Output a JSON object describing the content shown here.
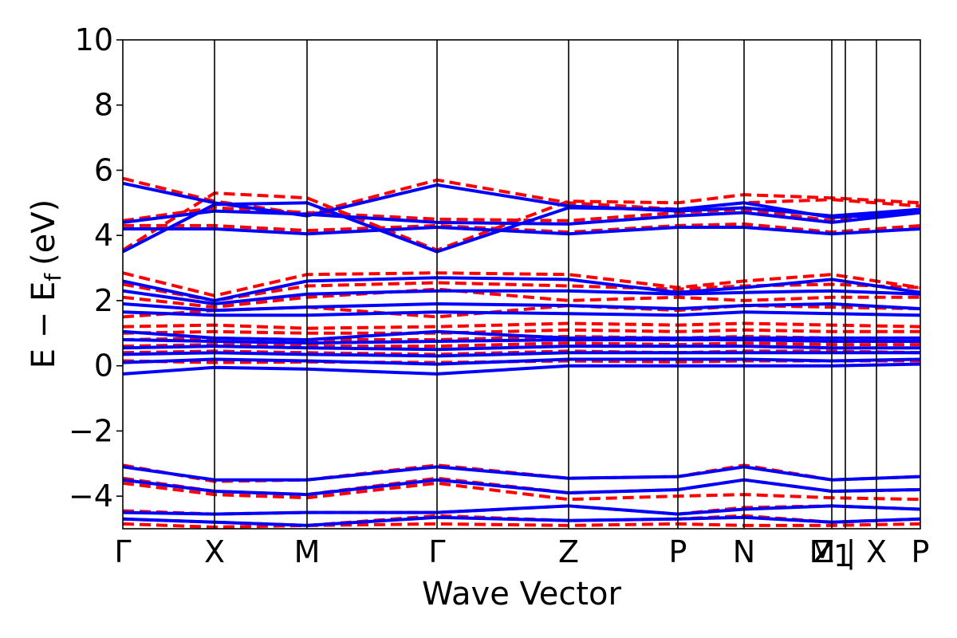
{
  "chart_data": {
    "type": "line",
    "xlabel": "Wave Vector",
    "ylabel": "E − E",
    "ylabel_subscript": "f",
    "ylabel_unit": "(eV)",
    "ylim": [
      -5,
      10
    ],
    "yticks": [
      -4,
      -2,
      0,
      2,
      4,
      6,
      8,
      10
    ],
    "ytick_labels": [
      "−4",
      "−2",
      "0",
      "2",
      "4",
      "6",
      "8",
      "10"
    ],
    "kpath": [
      {
        "label": "Γ",
        "pos": 0.0
      },
      {
        "label": "X",
        "pos": 0.115
      },
      {
        "label": "M",
        "pos": 0.231
      },
      {
        "label": "Γ",
        "pos": 0.394
      },
      {
        "label": "Z",
        "pos": 0.559
      },
      {
        "label": "P",
        "pos": 0.696
      },
      {
        "label": "N",
        "pos": 0.779
      },
      {
        "label": "Z",
        "pos": 0.889
      },
      {
        "label": "M",
        "pos": 0.889
      },
      {
        "label": "1",
        "pos": 0.889
      },
      {
        "label": "|",
        "pos": 0.907
      },
      {
        "label": "X",
        "pos": 0.945
      },
      {
        "label": "P",
        "pos": 1.0
      }
    ],
    "series": [
      {
        "style": "dashed",
        "color": "#ff0000",
        "bands": [
          {
            "x": [
              0,
              0.115,
              0.231,
              0.394,
              0.559,
              0.696,
              0.779,
              0.889,
              1.0
            ],
            "y": [
              -3.05,
              -3.55,
              -3.5,
              -3.05,
              -3.45,
              -3.4,
              -3.05,
              -3.5,
              -3.4
            ]
          },
          {
            "x": [
              0,
              0.115,
              0.231,
              0.394,
              0.559,
              0.696,
              0.779,
              0.889,
              1.0
            ],
            "y": [
              -3.45,
              -3.85,
              -3.95,
              -3.45,
              -3.9,
              -3.8,
              -3.5,
              -3.85,
              -3.8
            ]
          },
          {
            "x": [
              0,
              0.115,
              0.231,
              0.394,
              0.559,
              0.696,
              0.779,
              0.889,
              1.0
            ],
            "y": [
              -3.6,
              -3.95,
              -4.05,
              -3.6,
              -4.1,
              -4.0,
              -3.95,
              -4.05,
              -4.1
            ]
          },
          {
            "x": [
              0,
              0.115,
              0.231,
              0.394,
              0.559,
              0.696,
              0.779,
              0.889,
              1.0
            ],
            "y": [
              -4.45,
              -4.55,
              -4.5,
              -4.5,
              -4.3,
              -4.55,
              -4.35,
              -4.3,
              -4.4
            ]
          },
          {
            "x": [
              0,
              0.115,
              0.231,
              0.394,
              0.559,
              0.696,
              0.779,
              0.889,
              1.0
            ],
            "y": [
              -4.7,
              -4.8,
              -4.9,
              -4.6,
              -4.75,
              -4.7,
              -4.6,
              -4.8,
              -4.7
            ]
          },
          {
            "x": [
              0,
              0.115,
              0.231,
              0.394,
              0.559,
              0.696,
              0.779,
              0.889,
              1.0
            ],
            "y": [
              -4.85,
              -4.95,
              -4.9,
              -4.85,
              -4.9,
              -4.85,
              -4.9,
              -4.9,
              -4.85
            ]
          },
          {
            "x": [
              0,
              0.115,
              0.231,
              0.394,
              0.559,
              0.696,
              0.779,
              0.889,
              1.0
            ],
            "y": [
              0.15,
              0.1,
              0.12,
              0.1,
              0.15,
              0.12,
              0.15,
              0.15,
              0.15
            ]
          },
          {
            "x": [
              0,
              0.115,
              0.231,
              0.394,
              0.559,
              0.696,
              0.779,
              0.889,
              1.0
            ],
            "y": [
              0.4,
              0.45,
              0.4,
              0.35,
              0.45,
              0.4,
              0.45,
              0.45,
              0.4
            ]
          },
          {
            "x": [
              0,
              0.115,
              0.231,
              0.394,
              0.559,
              0.696,
              0.779,
              0.889,
              1.0
            ],
            "y": [
              0.6,
              0.65,
              0.6,
              0.6,
              0.7,
              0.65,
              0.7,
              0.65,
              0.65
            ]
          },
          {
            "x": [
              0,
              0.115,
              0.231,
              0.394,
              0.559,
              0.696,
              0.779,
              0.889,
              1.0
            ],
            "y": [
              0.8,
              0.85,
              0.8,
              0.8,
              0.9,
              0.85,
              0.9,
              0.85,
              0.85
            ]
          },
          {
            "x": [
              0,
              0.115,
              0.231,
              0.394,
              0.559,
              0.696,
              0.779,
              0.889,
              1.0
            ],
            "y": [
              1.0,
              1.05,
              1.0,
              1.0,
              1.1,
              1.05,
              1.1,
              1.05,
              1.05
            ]
          },
          {
            "x": [
              0,
              0.115,
              0.231,
              0.394,
              0.559,
              0.696,
              0.779,
              0.889,
              1.0
            ],
            "y": [
              1.2,
              1.25,
              1.15,
              1.2,
              1.3,
              1.25,
              1.3,
              1.25,
              1.2
            ]
          },
          {
            "x": [
              0,
              0.115,
              0.231,
              0.394,
              0.559,
              0.696,
              0.779,
              0.889,
              1.0
            ],
            "y": [
              1.5,
              1.7,
              1.8,
              1.5,
              1.85,
              1.7,
              1.85,
              1.8,
              1.75
            ]
          },
          {
            "x": [
              0,
              0.115,
              0.231,
              0.394,
              0.559,
              0.696,
              0.779,
              0.889,
              1.0
            ],
            "y": [
              2.1,
              1.8,
              2.1,
              2.35,
              2.0,
              2.1,
              2.0,
              2.1,
              2.1
            ]
          },
          {
            "x": [
              0,
              0.115,
              0.231,
              0.394,
              0.559,
              0.696,
              0.779,
              0.889,
              1.0
            ],
            "y": [
              2.5,
              2.0,
              2.45,
              2.55,
              2.45,
              2.35,
              2.45,
              2.5,
              2.4
            ]
          },
          {
            "x": [
              0,
              0.115,
              0.231,
              0.394,
              0.559,
              0.696,
              0.779,
              0.889,
              1.0
            ],
            "y": [
              2.85,
              2.15,
              2.8,
              2.85,
              2.8,
              2.4,
              2.6,
              2.8,
              2.4
            ]
          },
          {
            "x": [
              0,
              0.115,
              0.231,
              0.394,
              0.559,
              0.696,
              0.779,
              0.889,
              1.0
            ],
            "y": [
              3.55,
              5.3,
              5.15,
              3.55,
              5.05,
              5.0,
              5.25,
              5.15,
              5.0
            ]
          },
          {
            "x": [
              0,
              0.115,
              0.231,
              0.394,
              0.559,
              0.696,
              0.779,
              0.889,
              1.0
            ],
            "y": [
              4.3,
              4.3,
              4.15,
              4.3,
              4.1,
              4.3,
              4.35,
              4.1,
              4.3
            ]
          },
          {
            "x": [
              0,
              0.115,
              0.231,
              0.394,
              0.559,
              0.696,
              0.779,
              0.889,
              1.0
            ],
            "y": [
              4.45,
              4.85,
              4.7,
              4.5,
              4.45,
              4.7,
              4.8,
              4.45,
              4.8
            ]
          },
          {
            "x": [
              0,
              0.115,
              0.231,
              0.394,
              0.559,
              0.696,
              0.779,
              0.889,
              1.0
            ],
            "y": [
              5.75,
              5.05,
              4.65,
              5.7,
              5.0,
              4.8,
              5.0,
              5.1,
              4.9
            ]
          }
        ]
      },
      {
        "style": "solid",
        "color": "#0000ff",
        "bands": [
          {
            "x": [
              0,
              0.115,
              0.231,
              0.394,
              0.559,
              0.696,
              0.779,
              0.889,
              1.0
            ],
            "y": [
              -3.1,
              -3.5,
              -3.5,
              -3.1,
              -3.45,
              -3.4,
              -3.1,
              -3.5,
              -3.4
            ]
          },
          {
            "x": [
              0,
              0.115,
              0.231,
              0.394,
              0.559,
              0.696,
              0.779,
              0.889,
              1.0
            ],
            "y": [
              -3.5,
              -3.85,
              -3.95,
              -3.5,
              -3.9,
              -3.8,
              -3.5,
              -3.85,
              -3.8
            ]
          },
          {
            "x": [
              0,
              0.115,
              0.231,
              0.394,
              0.559,
              0.696,
              0.779,
              0.889,
              1.0
            ],
            "y": [
              -4.5,
              -4.55,
              -4.5,
              -4.5,
              -4.3,
              -4.55,
              -4.4,
              -4.3,
              -4.4
            ]
          },
          {
            "x": [
              0,
              0.115,
              0.231,
              0.394,
              0.559,
              0.696,
              0.779,
              0.889,
              1.0
            ],
            "y": [
              -4.7,
              -4.8,
              -4.9,
              -4.65,
              -4.75,
              -4.7,
              -4.65,
              -4.8,
              -4.7
            ]
          },
          {
            "x": [
              0,
              0.115,
              0.231,
              0.394,
              0.559,
              0.696,
              0.779,
              0.889,
              1.0
            ],
            "y": [
              -0.25,
              -0.05,
              -0.1,
              -0.25,
              0.0,
              0.0,
              0.0,
              0.0,
              0.05
            ]
          },
          {
            "x": [
              0,
              0.115,
              0.231,
              0.394,
              0.559,
              0.696,
              0.779,
              0.889,
              1.0
            ],
            "y": [
              0.1,
              0.2,
              0.15,
              0.05,
              0.2,
              0.2,
              0.2,
              0.15,
              0.2
            ]
          },
          {
            "x": [
              0,
              0.115,
              0.231,
              0.394,
              0.559,
              0.696,
              0.779,
              0.889,
              1.0
            ],
            "y": [
              0.35,
              0.4,
              0.35,
              0.3,
              0.4,
              0.4,
              0.4,
              0.4,
              0.4
            ]
          },
          {
            "x": [
              0,
              0.115,
              0.231,
              0.394,
              0.559,
              0.696,
              0.779,
              0.889,
              1.0
            ],
            "y": [
              0.55,
              0.6,
              0.55,
              0.5,
              0.6,
              0.6,
              0.6,
              0.55,
              0.55
            ]
          },
          {
            "x": [
              0,
              0.115,
              0.231,
              0.394,
              0.559,
              0.696,
              0.779,
              0.889,
              1.0
            ],
            "y": [
              0.8,
              0.75,
              0.7,
              0.75,
              0.8,
              0.8,
              0.8,
              0.75,
              0.75
            ]
          },
          {
            "x": [
              0,
              0.115,
              0.231,
              0.394,
              0.559,
              0.696,
              0.779,
              0.889,
              1.0
            ],
            "y": [
              1.05,
              0.85,
              0.8,
              1.05,
              0.85,
              0.85,
              0.85,
              0.85,
              0.85
            ]
          },
          {
            "x": [
              0,
              0.115,
              0.231,
              0.394,
              0.559,
              0.696,
              0.779,
              0.889,
              1.0
            ],
            "y": [
              1.65,
              1.55,
              1.55,
              1.65,
              1.6,
              1.55,
              1.65,
              1.6,
              1.55
            ]
          },
          {
            "x": [
              0,
              0.115,
              0.231,
              0.394,
              0.559,
              0.696,
              0.779,
              0.889,
              1.0
            ],
            "y": [
              1.9,
              1.7,
              1.8,
              1.9,
              1.85,
              1.75,
              1.85,
              1.9,
              1.75
            ]
          },
          {
            "x": [
              0,
              0.115,
              0.231,
              0.394,
              0.559,
              0.696,
              0.779,
              0.889,
              1.0
            ],
            "y": [
              2.3,
              1.9,
              2.2,
              2.3,
              2.3,
              2.2,
              2.25,
              2.3,
              2.2
            ]
          },
          {
            "x": [
              0,
              0.115,
              0.231,
              0.394,
              0.559,
              0.696,
              0.779,
              0.889,
              1.0
            ],
            "y": [
              2.6,
              2.0,
              2.6,
              2.7,
              2.65,
              2.25,
              2.4,
              2.65,
              2.25
            ]
          },
          {
            "x": [
              0,
              0.115,
              0.231,
              0.394,
              0.559,
              0.696,
              0.779,
              0.889,
              1.0
            ],
            "y": [
              3.5,
              4.95,
              5.0,
              3.5,
              4.85,
              4.8,
              5.0,
              4.55,
              4.7
            ]
          },
          {
            "x": [
              0,
              0.115,
              0.231,
              0.394,
              0.559,
              0.696,
              0.779,
              0.889,
              1.0
            ],
            "y": [
              4.2,
              4.2,
              4.05,
              4.25,
              4.05,
              4.25,
              4.25,
              4.05,
              4.2
            ]
          },
          {
            "x": [
              0,
              0.115,
              0.231,
              0.394,
              0.559,
              0.696,
              0.779,
              0.889,
              1.0
            ],
            "y": [
              4.4,
              4.75,
              4.65,
              4.4,
              4.35,
              4.6,
              4.7,
              4.4,
              4.7
            ]
          },
          {
            "x": [
              0,
              0.115,
              0.231,
              0.394,
              0.559,
              0.696,
              0.779,
              0.889,
              1.0
            ],
            "y": [
              5.6,
              5.0,
              4.6,
              5.55,
              4.9,
              4.75,
              4.85,
              4.6,
              4.8
            ]
          }
        ]
      }
    ]
  }
}
